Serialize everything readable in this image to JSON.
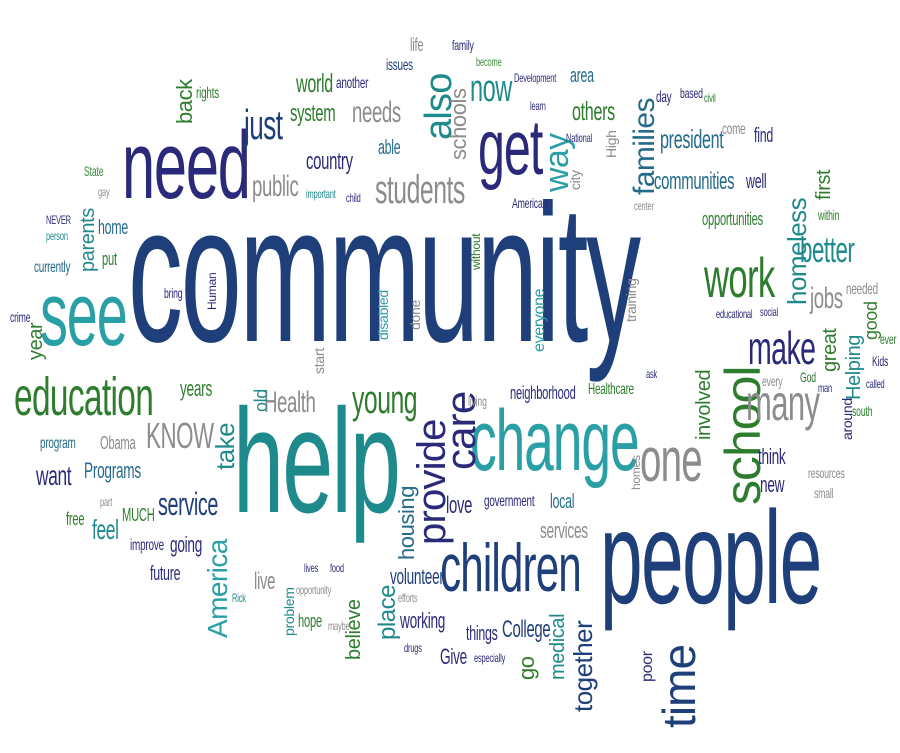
{
  "colors": {
    "navy": "#1f3f7a",
    "green": "#2e7d2e",
    "teal": "#1f8a8c",
    "indigo": "#2b2a7a",
    "gray": "#8c8c8c",
    "aqua": "#2a9fa6"
  },
  "words": [
    "community",
    "help",
    "people",
    "need",
    "change",
    "see",
    "children",
    "education",
    "school",
    "get",
    "work",
    "make",
    "many",
    "one",
    "provide",
    "care",
    "time",
    "now",
    "families",
    "students",
    "just",
    "better",
    "also",
    "way",
    "needs",
    "young",
    "KNOW",
    "service",
    "America",
    "homeless",
    "jobs",
    "public",
    "country",
    "system",
    "world",
    "others",
    "president",
    "communities",
    "opportunities",
    "Programs",
    "want",
    "feel",
    "Health",
    "take",
    "years",
    "love",
    "government",
    "local",
    "services",
    "housing",
    "volunteer",
    "place",
    "working",
    "College",
    "together",
    "medical",
    "things",
    "Give",
    "go",
    "believe",
    "live",
    "hope",
    "future",
    "improve",
    "going",
    "MUCH",
    "free",
    "program",
    "Obama",
    "crime",
    "year",
    "NEVER",
    "person",
    "currently",
    "parents",
    "home",
    "put",
    "State",
    "gay",
    "back",
    "rights",
    "issues",
    "life",
    "family",
    "become",
    "another",
    "Development",
    "area",
    "day",
    "based",
    "civil",
    "learn",
    "National",
    "High",
    "come",
    "find",
    "able",
    "important",
    "child",
    "American",
    "city",
    "center",
    "first",
    "within",
    "well",
    "educational",
    "social",
    "needed",
    "good",
    "ever",
    "Kids",
    "called",
    "Helping",
    "great",
    "south",
    "around",
    "God",
    "man",
    "every",
    "involved",
    "think",
    "new",
    "resources",
    "small",
    "ask",
    "neighborhood",
    "Healthcare",
    "living",
    "everyone",
    "done",
    "disabled",
    "start",
    "old",
    "Human",
    "bring",
    "without",
    "training",
    "part",
    "homes",
    "poor",
    "Rick",
    "problem",
    "opportunity",
    "lives",
    "food",
    "efforts",
    "maybe",
    "drugs",
    "especially",
    "schools"
  ]
}
